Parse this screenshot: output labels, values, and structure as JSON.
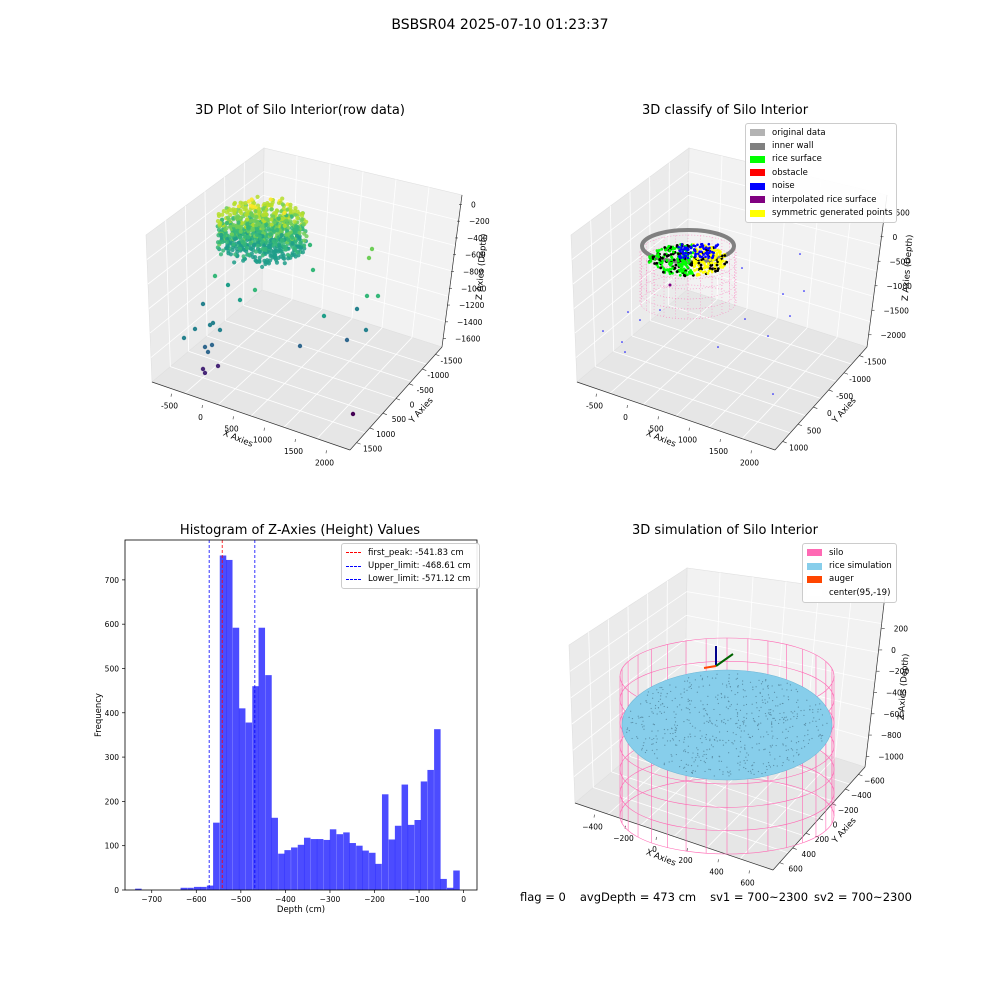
{
  "suptitle": "BSBSR04 2025-07-10 01:23:37",
  "panels": {
    "raw": {
      "title": "3D Plot of Silo Interior(row data)",
      "xlabel": "X Axies",
      "ylabel": "Y Axies",
      "zlabel": "Z Axies (Depth)",
      "xticks": [
        "-500",
        "0",
        "500",
        "1000",
        "1500",
        "2000"
      ],
      "yticks": [
        "-1500",
        "-1000",
        "-500",
        "0",
        "500",
        "1000",
        "1500"
      ],
      "zticks": [
        "0",
        "−200",
        "−400",
        "−600",
        "−800",
        "−1000",
        "−1200",
        "−1400",
        "−1600"
      ],
      "colormap": "viridis"
    },
    "classify": {
      "title": "3D classify of Silo Interior",
      "xlabel": "X Axies",
      "ylabel": "Y Axies",
      "zlabel": "Z Axies (Depth)",
      "xticks": [
        "-500",
        "0",
        "500",
        "1000",
        "1500",
        "2000"
      ],
      "yticks": [
        "-1500",
        "-1000",
        "-500",
        "0",
        "500",
        "1000"
      ],
      "zticks": [
        "500",
        "0",
        "−500",
        "−1000",
        "−1500",
        "−2000"
      ],
      "legend": [
        {
          "label": "original data",
          "color": "#b3b3b3"
        },
        {
          "label": "inner wall",
          "color": "#808080"
        },
        {
          "label": "rice surface",
          "color": "#00ff00"
        },
        {
          "label": "obstacle",
          "color": "#ff0000"
        },
        {
          "label": "noise",
          "color": "#0000ff"
        },
        {
          "label": "interpolated rice surface",
          "color": "#800080"
        },
        {
          "label": "symmetric generated points",
          "color": "#ffff00"
        }
      ]
    },
    "histogram": {
      "title": "Histogram of Z-Axies (Height) Values",
      "xlabel": "Depth (cm)",
      "ylabel": "Frequency",
      "xticks": [
        "−700",
        "−600",
        "−500",
        "−400",
        "−300",
        "−200",
        "−100",
        "0"
      ],
      "yticks": [
        "0",
        "100",
        "200",
        "300",
        "400",
        "500",
        "600",
        "700"
      ],
      "legend": [
        {
          "label": "first_peak: -541.83 cm",
          "color": "#ff0000"
        },
        {
          "label": "Upper_limit: -468.61 cm",
          "color": "#0000ff"
        },
        {
          "label": "Lower_limit: -571.12 cm",
          "color": "#0000ff"
        }
      ]
    },
    "simulation": {
      "title": "3D simulation of Silo Interior",
      "xlabel": "X Axies",
      "ylabel": "Y Axies",
      "zlabel": "Z Axies (Depth)",
      "xticks": [
        "−400",
        "−200",
        "0",
        "200",
        "400",
        "600"
      ],
      "yticks": [
        "−600",
        "−400",
        "−200",
        "0",
        "200",
        "400",
        "600"
      ],
      "zticks": [
        "200",
        "0",
        "−200",
        "−400",
        "−600",
        "−800",
        "−1000"
      ],
      "legend": [
        {
          "label": "silo",
          "color": "#ff69b4"
        },
        {
          "label": "rice simulation",
          "color": "#87ceeb"
        },
        {
          "label": "auger",
          "color": "#ff4500"
        },
        {
          "label": "center(95,-19)",
          "color": "#ffffff"
        }
      ]
    }
  },
  "footer": {
    "flag": "flag = 0",
    "avg": "avgDepth = 473 cm",
    "sv1": "sv1 = 700~2300",
    "sv2": "sv2 = 700~2300"
  },
  "chart_data": [
    {
      "type": "scatter",
      "title": "3D Plot of Silo Interior(row data)",
      "xlabel": "X Axies",
      "ylabel": "Y Axies",
      "zlabel": "Z Axies (Depth)",
      "xlim": [
        -700,
        2300
      ],
      "ylim": [
        -1700,
        1700
      ],
      "zlim": [
        -1700,
        100
      ],
      "points": [
        {
          "x": 50,
          "y": 0,
          "z": -300
        },
        {
          "x": 100,
          "y": 100,
          "z": -450
        },
        {
          "x": 0,
          "y": -50,
          "z": -500
        },
        {
          "x": -300,
          "y": -200,
          "z": -1400
        },
        {
          "x": 1000,
          "y": 1400,
          "z": -600
        },
        {
          "x": 2000,
          "y": -300,
          "z": -1600
        },
        {
          "x": 1500,
          "y": 800,
          "z": -1100
        }
      ]
    },
    {
      "type": "scatter",
      "title": "3D classify of Silo Interior",
      "xlabel": "X Axies",
      "ylabel": "Y Axies",
      "zlabel": "Z Axies (Depth)",
      "xlim": [
        -700,
        2300
      ],
      "ylim": [
        -1700,
        1300
      ],
      "zlim": [
        -2200,
        600
      ],
      "series": [
        {
          "name": "original data"
        },
        {
          "name": "inner wall"
        },
        {
          "name": "rice surface"
        },
        {
          "name": "obstacle"
        },
        {
          "name": "noise"
        },
        {
          "name": "interpolated rice surface"
        },
        {
          "name": "symmetric generated points"
        }
      ]
    },
    {
      "type": "bar",
      "title": "Histogram of Z-Axies (Height) Values",
      "xlabel": "Depth (cm)",
      "ylabel": "Frequency",
      "xlim": [
        -760,
        30
      ],
      "ylim": [
        0,
        790
      ],
      "bin_width": 14.6,
      "bins": [
        {
          "x": -730,
          "y": 3
        },
        {
          "x": -715,
          "y": 0
        },
        {
          "x": -700,
          "y": 0
        },
        {
          "x": -686,
          "y": 0
        },
        {
          "x": -671,
          "y": 0
        },
        {
          "x": -657,
          "y": 0
        },
        {
          "x": -642,
          "y": 0
        },
        {
          "x": -628,
          "y": 5
        },
        {
          "x": -613,
          "y": 5
        },
        {
          "x": -598,
          "y": 7
        },
        {
          "x": -584,
          "y": 7
        },
        {
          "x": -569,
          "y": 10
        },
        {
          "x": -555,
          "y": 152
        },
        {
          "x": -540,
          "y": 755
        },
        {
          "x": -526,
          "y": 745
        },
        {
          "x": -511,
          "y": 592
        },
        {
          "x": -497,
          "y": 410
        },
        {
          "x": -482,
          "y": 378
        },
        {
          "x": -467,
          "y": 460
        },
        {
          "x": -453,
          "y": 592
        },
        {
          "x": -438,
          "y": 485
        },
        {
          "x": -424,
          "y": 163
        },
        {
          "x": -409,
          "y": 82
        },
        {
          "x": -395,
          "y": 90
        },
        {
          "x": -380,
          "y": 96
        },
        {
          "x": -365,
          "y": 102
        },
        {
          "x": -351,
          "y": 118
        },
        {
          "x": -336,
          "y": 115
        },
        {
          "x": -322,
          "y": 115
        },
        {
          "x": -307,
          "y": 113
        },
        {
          "x": -293,
          "y": 137
        },
        {
          "x": -278,
          "y": 126
        },
        {
          "x": -263,
          "y": 130
        },
        {
          "x": -249,
          "y": 106
        },
        {
          "x": -234,
          "y": 100
        },
        {
          "x": -220,
          "y": 89
        },
        {
          "x": -205,
          "y": 84
        },
        {
          "x": -191,
          "y": 59
        },
        {
          "x": -176,
          "y": 216
        },
        {
          "x": -161,
          "y": 114
        },
        {
          "x": -147,
          "y": 145
        },
        {
          "x": -132,
          "y": 238
        },
        {
          "x": -118,
          "y": 147
        },
        {
          "x": -103,
          "y": 158
        },
        {
          "x": -89,
          "y": 245
        },
        {
          "x": -74,
          "y": 271
        },
        {
          "x": -59,
          "y": 363
        },
        {
          "x": -45,
          "y": 25
        },
        {
          "x": -30,
          "y": 5
        },
        {
          "x": -16,
          "y": 44
        }
      ],
      "vlines": [
        {
          "label": "first_peak: -541.83 cm",
          "x": -541.83,
          "color": "#ff0000"
        },
        {
          "label": "Upper_limit: -468.61 cm",
          "x": -468.61,
          "color": "#0000ff"
        },
        {
          "label": "Lower_limit: -571.12 cm",
          "x": -571.12,
          "color": "#0000ff"
        }
      ]
    },
    {
      "type": "scatter",
      "title": "3D simulation of Silo Interior",
      "xlabel": "X Axies",
      "ylabel": "Y Axies",
      "zlabel": "Z Axies (Depth)",
      "xlim": [
        -500,
        700
      ],
      "ylim": [
        -700,
        700
      ],
      "zlim": [
        -1100,
        300
      ],
      "series": [
        {
          "name": "silo"
        },
        {
          "name": "rice simulation"
        },
        {
          "name": "auger"
        }
      ],
      "center": [
        95,
        -19
      ]
    }
  ]
}
